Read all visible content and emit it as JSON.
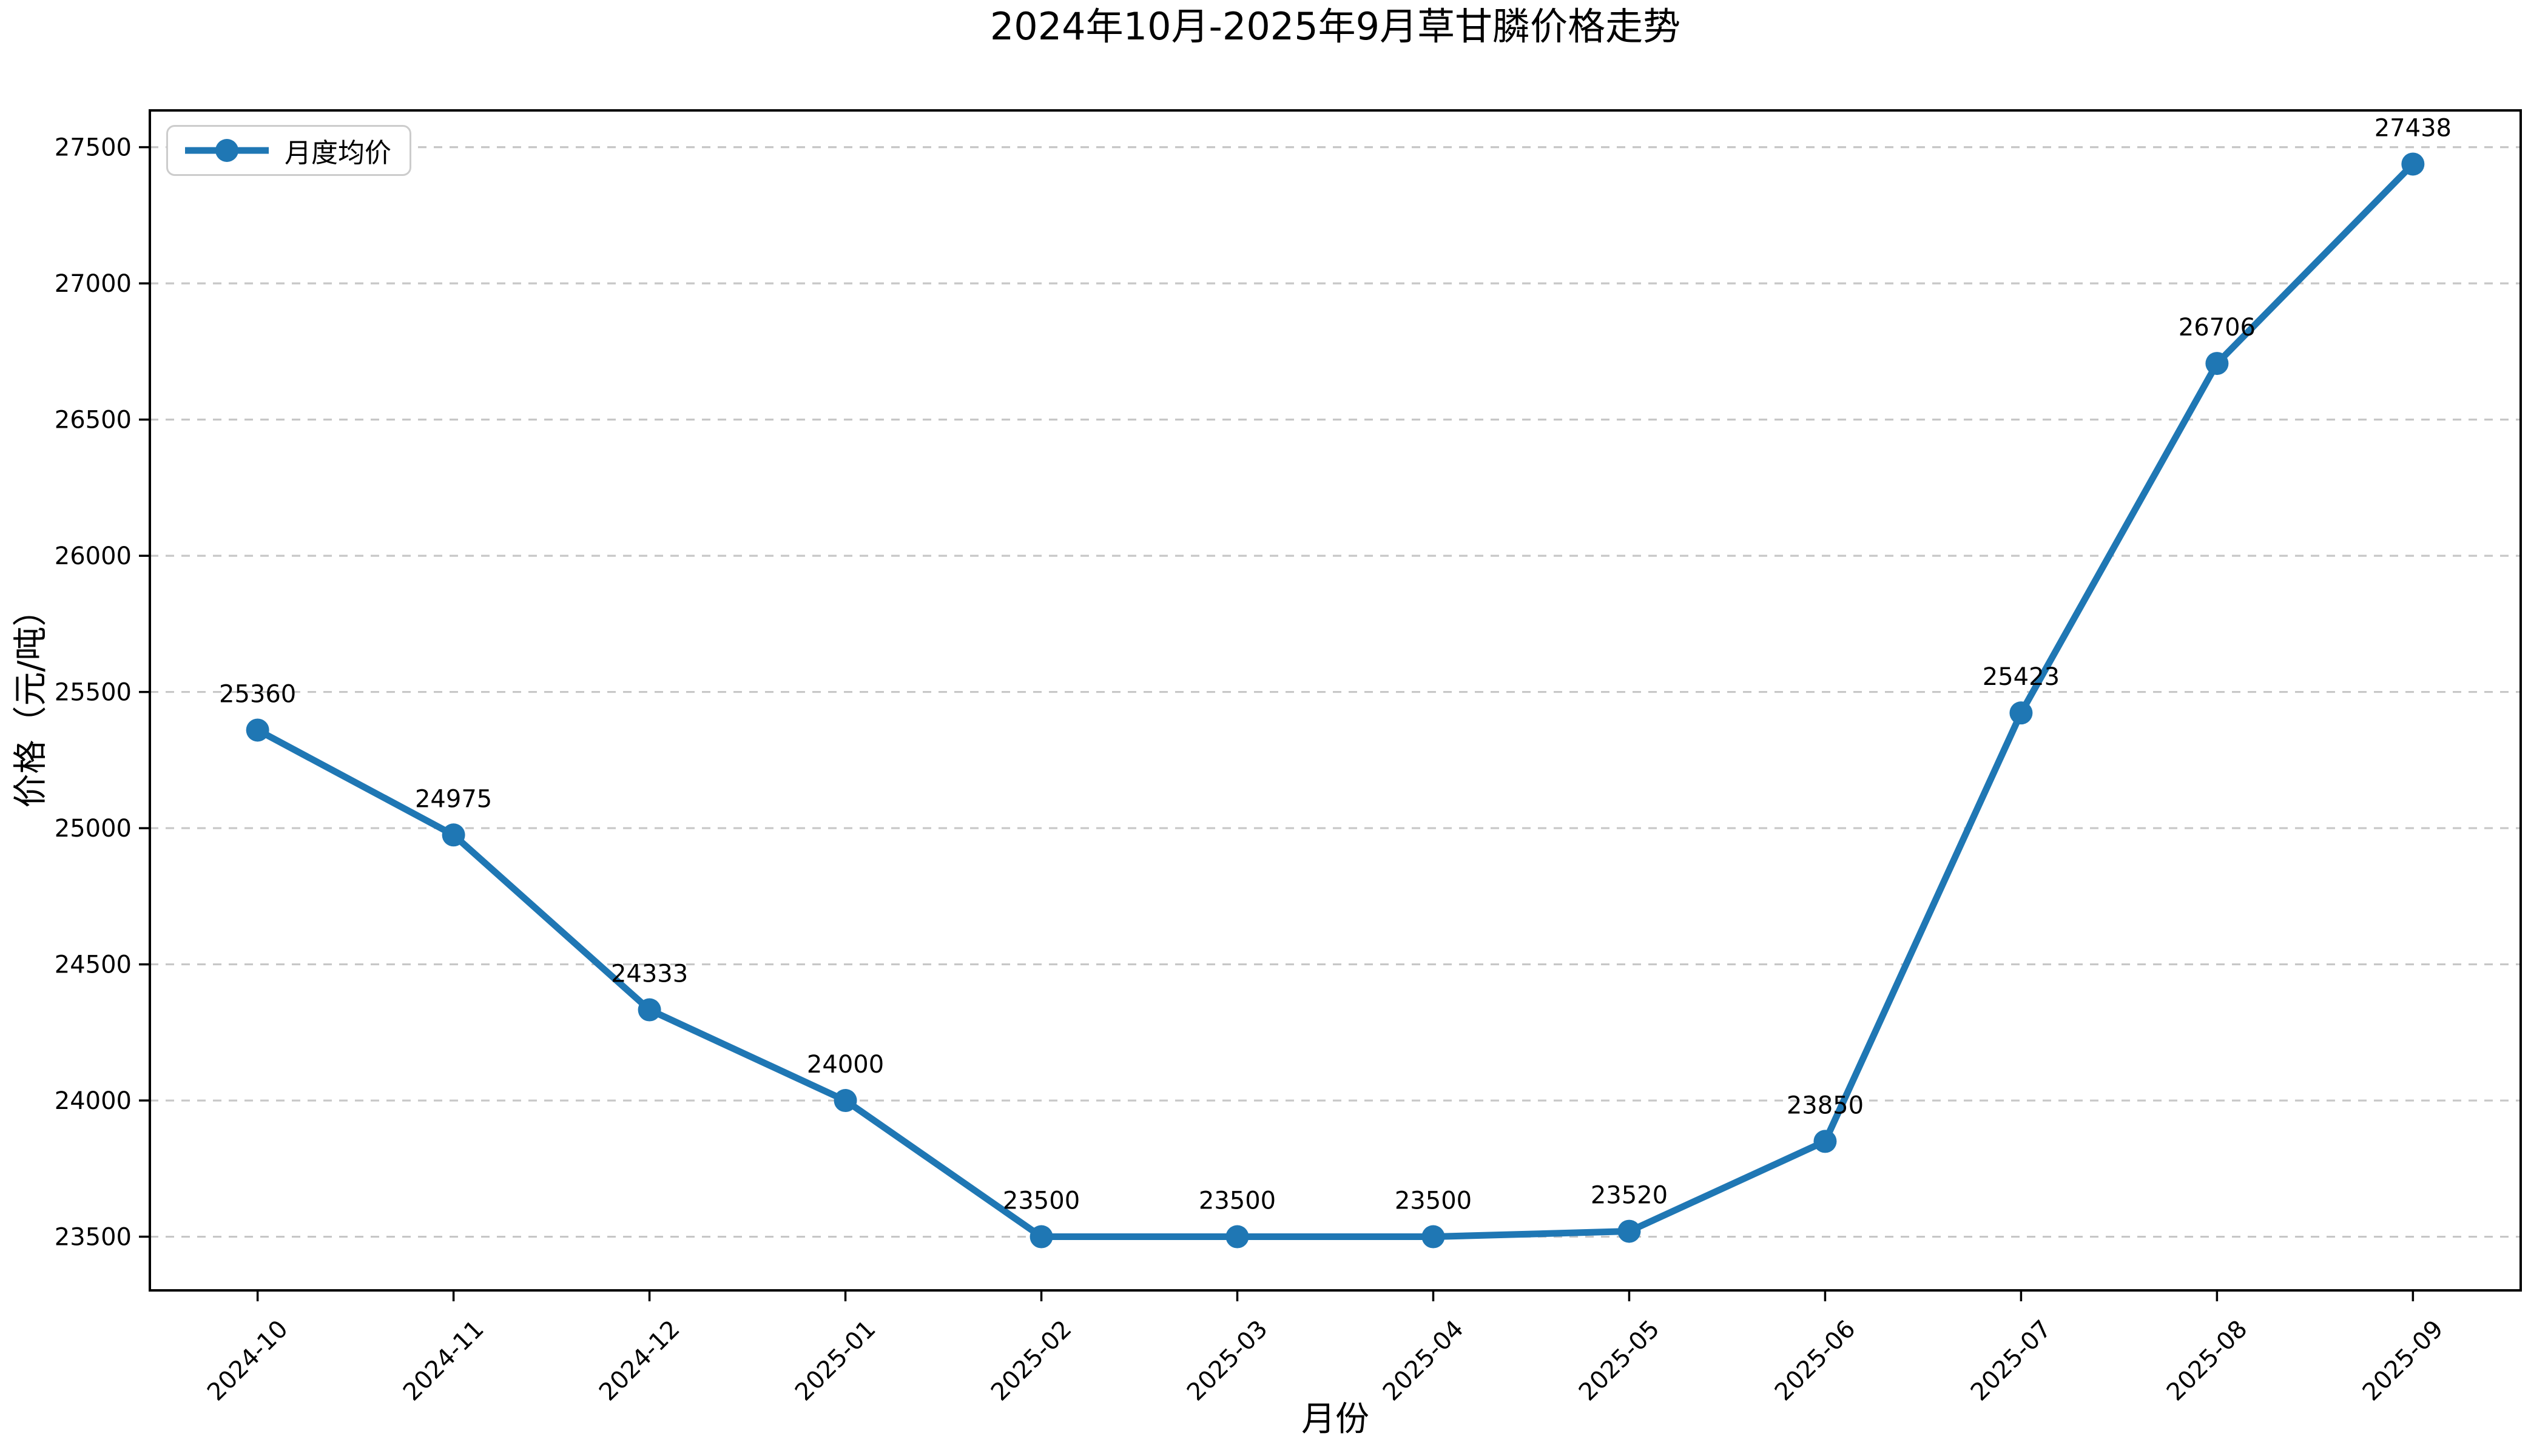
{
  "figure": {
    "title": "2024年10月-2025年9月草甘膦价格走势"
  },
  "chart_data": {
    "type": "line",
    "title": "2024年10月-2025年9月草甘膦价格走势",
    "xlabel": "月份",
    "ylabel": "价格（元/吨）",
    "categories": [
      "2024-10",
      "2024-11",
      "2024-12",
      "2025-01",
      "2025-02",
      "2025-03",
      "2025-04",
      "2025-05",
      "2025-06",
      "2025-07",
      "2025-08",
      "2025-09"
    ],
    "series": [
      {
        "name": "月度均价",
        "values": [
          25360,
          24975,
          24333,
          24000,
          23500,
          23500,
          23500,
          23520,
          23850,
          25423,
          26706,
          27438
        ]
      }
    ],
    "point_labels": [
      "25360",
      "24975",
      "24333",
      "24000",
      "23500",
      "23500",
      "23500",
      "23520",
      "23850",
      "25423",
      "26706",
      "27438"
    ],
    "legend": {
      "label": "月度均价",
      "position": "upper left"
    },
    "ylim": [
      23303,
      27635
    ],
    "yticks": [
      23500,
      24000,
      24500,
      25000,
      25500,
      26000,
      26500,
      27000,
      27500
    ],
    "xtick_rotation_deg": 45,
    "grid": {
      "horizontal": true,
      "style": "dashed"
    },
    "colors": {
      "line": "#1f77b4",
      "marker": "#1f77b4",
      "grid": "#c7c7c7",
      "axis": "#000000",
      "text": "#000000",
      "legend_border": "#cccccc",
      "background": "#ffffff"
    }
  }
}
